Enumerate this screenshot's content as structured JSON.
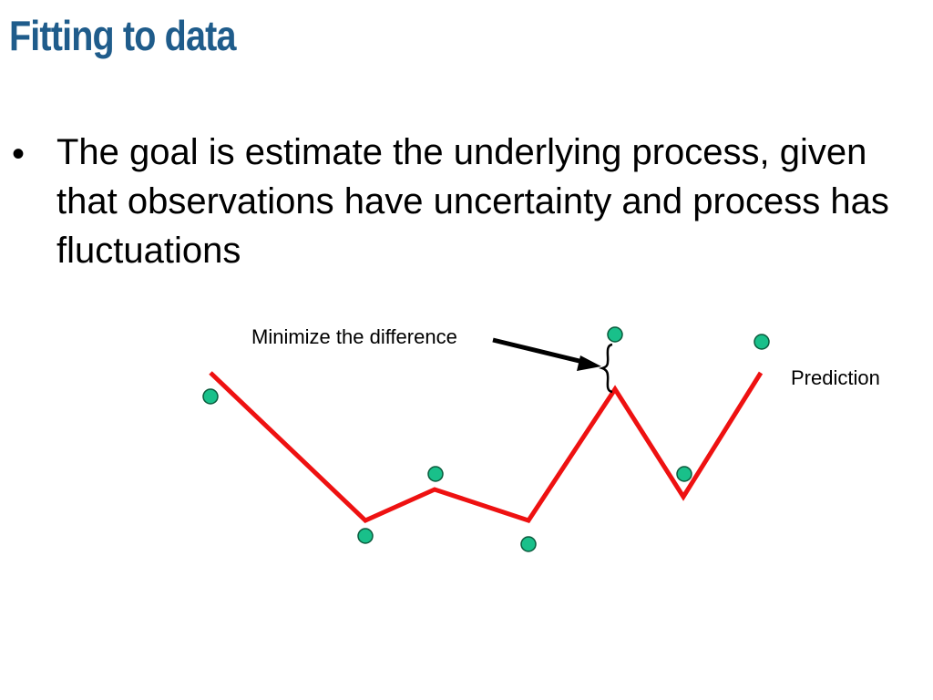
{
  "slide": {
    "title": "Fitting to data",
    "title_color": "#1f5c8b",
    "bullets": [
      {
        "symbol": "•",
        "text": "The goal is estimate the underlying process, given that observations have uncertainty and process has fluctuations"
      }
    ]
  },
  "figure": {
    "annotation_label": "Minimize the difference",
    "prediction_label": "Prediction",
    "line_color": "#ee1111",
    "point_fill": "#19c08a",
    "point_stroke": "#0a5a3c",
    "arrow_color": "#000000"
  }
}
